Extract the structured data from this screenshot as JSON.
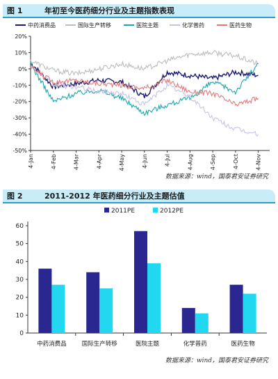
{
  "figure1": {
    "number": "图 1",
    "title": "年初至今医药细分行业及主题指数表现",
    "source": "数据来源：wind，国泰君安证券研究"
  },
  "figure2": {
    "number": "图 2",
    "title": "2011-2012 年医药细分行业及主题估值",
    "source": "数据来源：wind，国泰君安证券研究"
  },
  "chart_data": [
    {
      "type": "line",
      "title": "年初至今医药细分行业及主题指数表现",
      "x": [
        "4-Jan",
        "4-Feb",
        "4-Mar",
        "4-Apr",
        "4-May",
        "4-Jun",
        "4-Jul",
        "4-Aug",
        "4-Sep",
        "4-Oct",
        "4-Nov"
      ],
      "ylim": [
        -50,
        20
      ],
      "y_ticks": [
        "20%",
        "10%",
        "0%",
        "-10%",
        "-20%",
        "-30%",
        "-40%",
        "-50%"
      ],
      "legend_position": "top",
      "series": [
        {
          "name": "中药消费品",
          "color": "#1a1a70",
          "values": [
            4,
            -11,
            -9,
            -7,
            -8,
            -17,
            -2,
            -4,
            -6,
            -2,
            -4
          ]
        },
        {
          "name": "国际生产转移",
          "color": "#bdbdbd",
          "values": [
            5,
            -1,
            -3,
            0,
            3,
            0,
            5,
            9,
            10,
            8,
            3
          ]
        },
        {
          "name": "医院主题",
          "color": "#1aa7b0",
          "values": [
            3,
            -20,
            -15,
            -13,
            -18,
            -27,
            -22,
            -18,
            -8,
            -14,
            3
          ]
        },
        {
          "name": "化学普药",
          "color": "#c8c2e8",
          "values": [
            2,
            -10,
            -11,
            -14,
            -15,
            -22,
            -10,
            -17,
            -30,
            -37,
            -40
          ]
        },
        {
          "name": "医药生物",
          "color": "#e07a7a",
          "values": [
            1,
            -8,
            -7,
            -9,
            -10,
            -12,
            -7,
            -14,
            -15,
            -22,
            -18
          ]
        }
      ]
    },
    {
      "type": "bar",
      "title": "2011-2012 年医药细分行业及主题估值",
      "categories": [
        "中药消费品",
        "国际生产转移",
        "医院主题",
        "化学普药",
        "医药生物"
      ],
      "ylim": [
        0,
        60
      ],
      "y_ticks": [
        "0",
        "10",
        "20",
        "30",
        "40",
        "50",
        "60"
      ],
      "legend_position": "top-left",
      "series": [
        {
          "name": "2011PE",
          "color": "#2a2890",
          "values": [
            36,
            34,
            57,
            14,
            27
          ]
        },
        {
          "name": "2012PE",
          "color": "#22d8f0",
          "values": [
            27,
            25,
            39,
            11,
            22
          ]
        }
      ]
    }
  ]
}
